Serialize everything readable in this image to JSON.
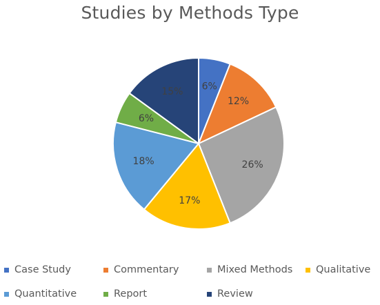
{
  "chart_data": {
    "type": "pie",
    "title": "Studies by Methods Type",
    "categories": [
      "Case Study",
      "Commentary",
      "Mixed Methods",
      "Qualitative",
      "Quantitative",
      "Report",
      "Review"
    ],
    "values": [
      6,
      12,
      26,
      17,
      18,
      6,
      15
    ],
    "value_labels": [
      "6%",
      "12%",
      "26%",
      "17%",
      "18%",
      "6%",
      "15%"
    ],
    "colors": [
      "#4472C4",
      "#ED7D31",
      "#A5A5A5",
      "#FFC000",
      "#5B9BD5",
      "#70AD47",
      "#264478"
    ],
    "legend_position": "bottom"
  }
}
